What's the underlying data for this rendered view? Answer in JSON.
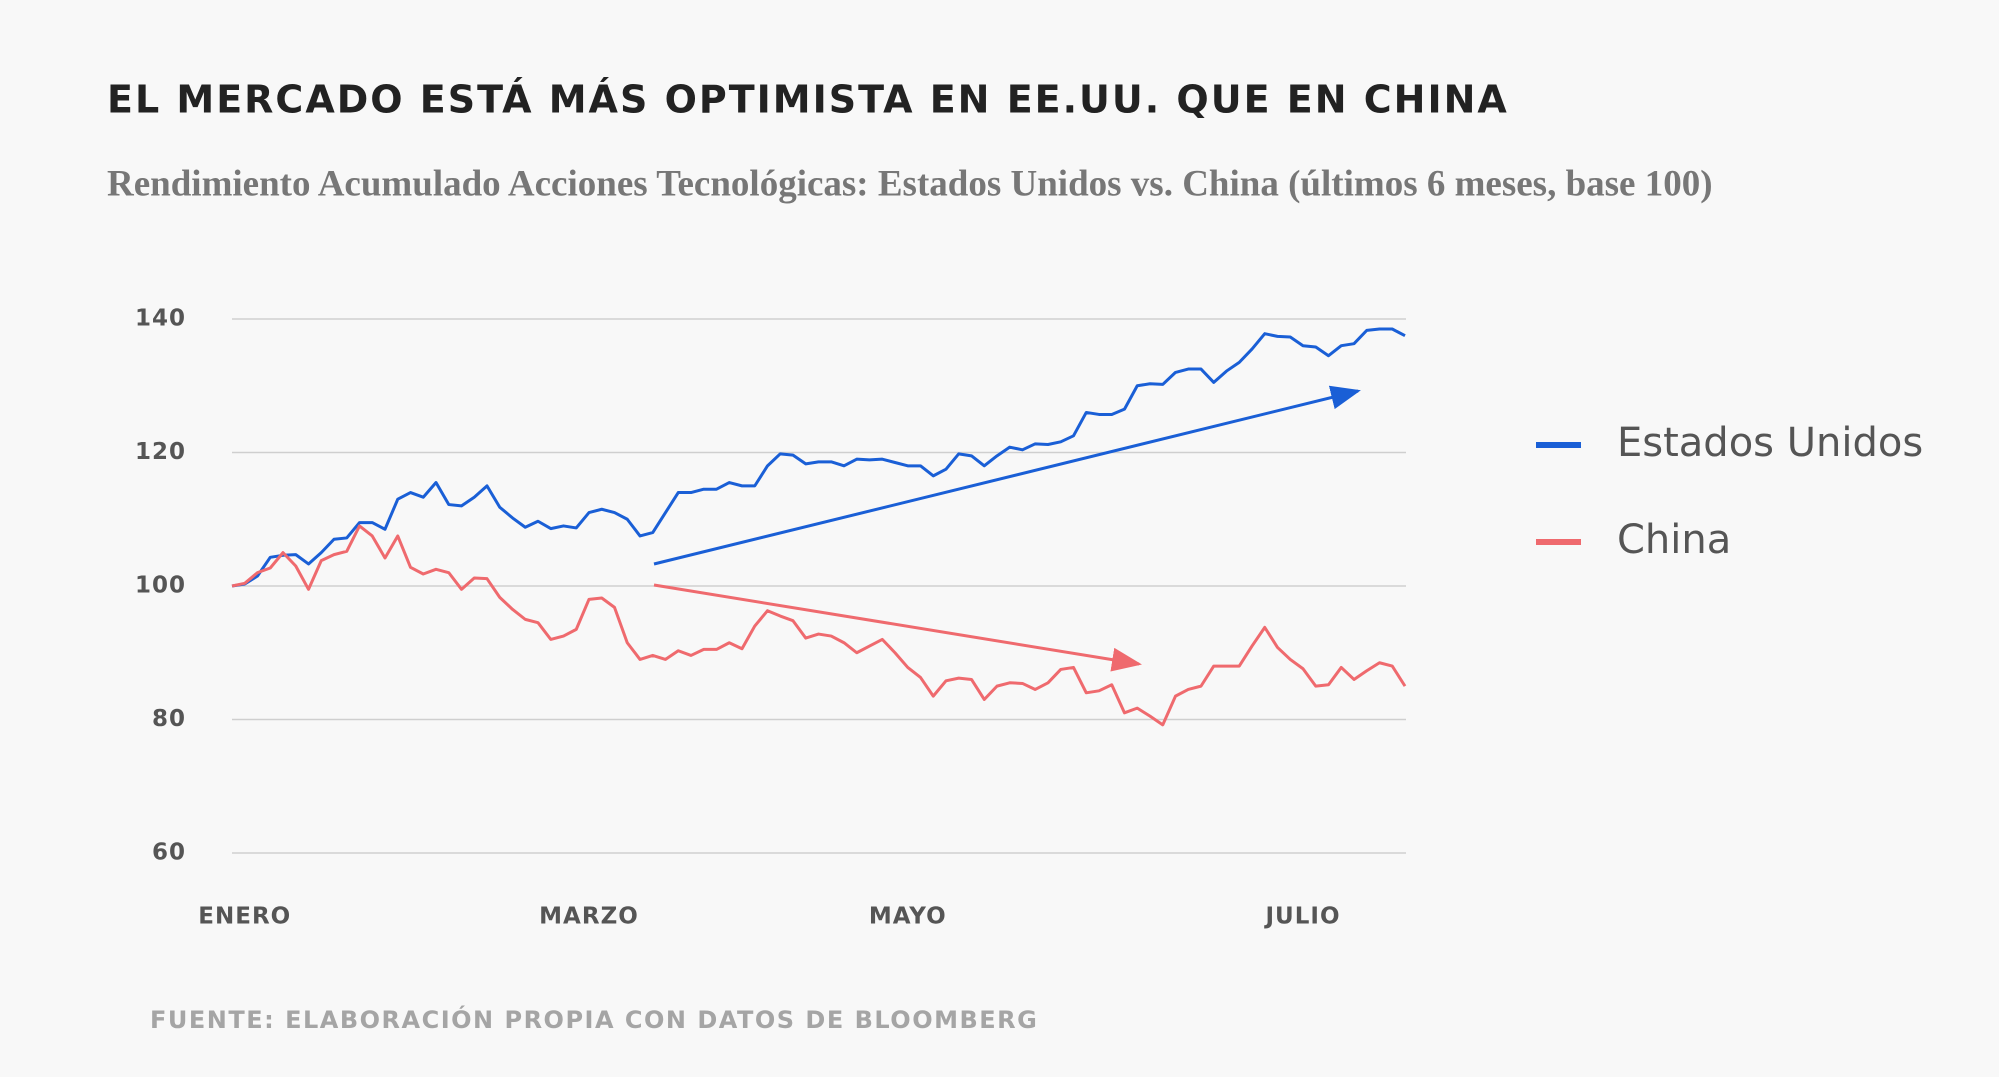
{
  "chart_data": {
    "type": "line",
    "title": "EL MERCADO ESTÁ MÁS OPTIMISTA EN EE.UU. QUE EN CHINA",
    "subtitle": "Rendimiento Acumulado Acciones Tecnológicas: Estados Unidos vs. China (últimos 6 meses, base 100)",
    "source": "FUENTE: ELABORACIÓN PROPIA CON DATOS DE BLOOMBERG",
    "categories": [
      null,
      "ENERO",
      null,
      null,
      null,
      null,
      null,
      null,
      null,
      null,
      null,
      null,
      null,
      null,
      null,
      null,
      null,
      null,
      null,
      null,
      null,
      null,
      null,
      null,
      null,
      null,
      null,
      null,
      "MARZO",
      null,
      null,
      null,
      null,
      null,
      null,
      null,
      null,
      null,
      null,
      null,
      null,
      null,
      null,
      null,
      null,
      null,
      null,
      null,
      null,
      null,
      null,
      null,
      null,
      "MAYO",
      null,
      null,
      null,
      null,
      null,
      null,
      null,
      null,
      null,
      null,
      null,
      null,
      null,
      null,
      null,
      null,
      null,
      null,
      null,
      null,
      null,
      null,
      null,
      null,
      null,
      null,
      null,
      null,
      null,
      null,
      "JULIO",
      null,
      null,
      null,
      null,
      null,
      null,
      null,
      null
    ],
    "series": [
      {
        "name": "Estados Unidos",
        "color": "#1a5fd6",
        "values": [
          100,
          100.3,
          101.5,
          104.3,
          104.6,
          104.7,
          103.3,
          105,
          107,
          107.2,
          109.5,
          109.5,
          108.5,
          113,
          114,
          113.3,
          115.5,
          112.2,
          112,
          113.3,
          115,
          111.8,
          110.2,
          108.8,
          109.7,
          108.6,
          109,
          108.7,
          111,
          111.5,
          111,
          110,
          107.5,
          108,
          111,
          114,
          114,
          114.5,
          114.5,
          115.5,
          115,
          115,
          118,
          119.8,
          119.6,
          118.3,
          118.6,
          118.6,
          118,
          119,
          118.9,
          119,
          118.5,
          118,
          118,
          116.5,
          117.5,
          119.8,
          119.5,
          118,
          119.5,
          120.8,
          120.4,
          121.3,
          121.2,
          121.6,
          122.5,
          126,
          125.7,
          125.7,
          126.5,
          130,
          130.3,
          130.2,
          132,
          132.5,
          132.5,
          130.5,
          132.2,
          133.5,
          135.5,
          137.8,
          137.4,
          137.3,
          136,
          135.8,
          134.5,
          136,
          136.3,
          138.3,
          138.5,
          138.5,
          137.5
        ]
      },
      {
        "name": "China",
        "color": "#ef6a6e",
        "values": [
          100,
          100.4,
          102,
          102.7,
          105,
          103,
          99.5,
          103.8,
          104.7,
          105.2,
          109,
          107.5,
          104.2,
          107.5,
          102.8,
          101.8,
          102.5,
          102,
          99.5,
          101.2,
          101.1,
          98.3,
          96.5,
          95,
          94.5,
          92,
          92.5,
          93.5,
          98,
          98.2,
          96.8,
          91.5,
          89,
          89.6,
          89,
          90.3,
          89.6,
          90.5,
          90.5,
          91.5,
          90.6,
          94,
          96.3,
          95.5,
          94.8,
          92.2,
          92.8,
          92.5,
          91.5,
          90,
          91,
          92,
          90,
          87.8,
          86.3,
          83.5,
          85.8,
          86.2,
          86,
          83,
          85,
          85.5,
          85.4,
          84.5,
          85.5,
          87.5,
          87.8,
          84,
          84.3,
          85.2,
          81,
          81.7,
          80.5,
          79.2,
          83.5,
          84.5,
          85,
          88,
          88,
          88,
          91,
          93.8,
          90.8,
          89,
          87.6,
          85,
          85.2,
          87.8,
          86,
          87.3,
          88.5,
          88,
          85
        ]
      }
    ],
    "ylim": [
      60,
      140
    ],
    "yticks": [
      60,
      80,
      100,
      120,
      140
    ],
    "grid": true
  }
}
